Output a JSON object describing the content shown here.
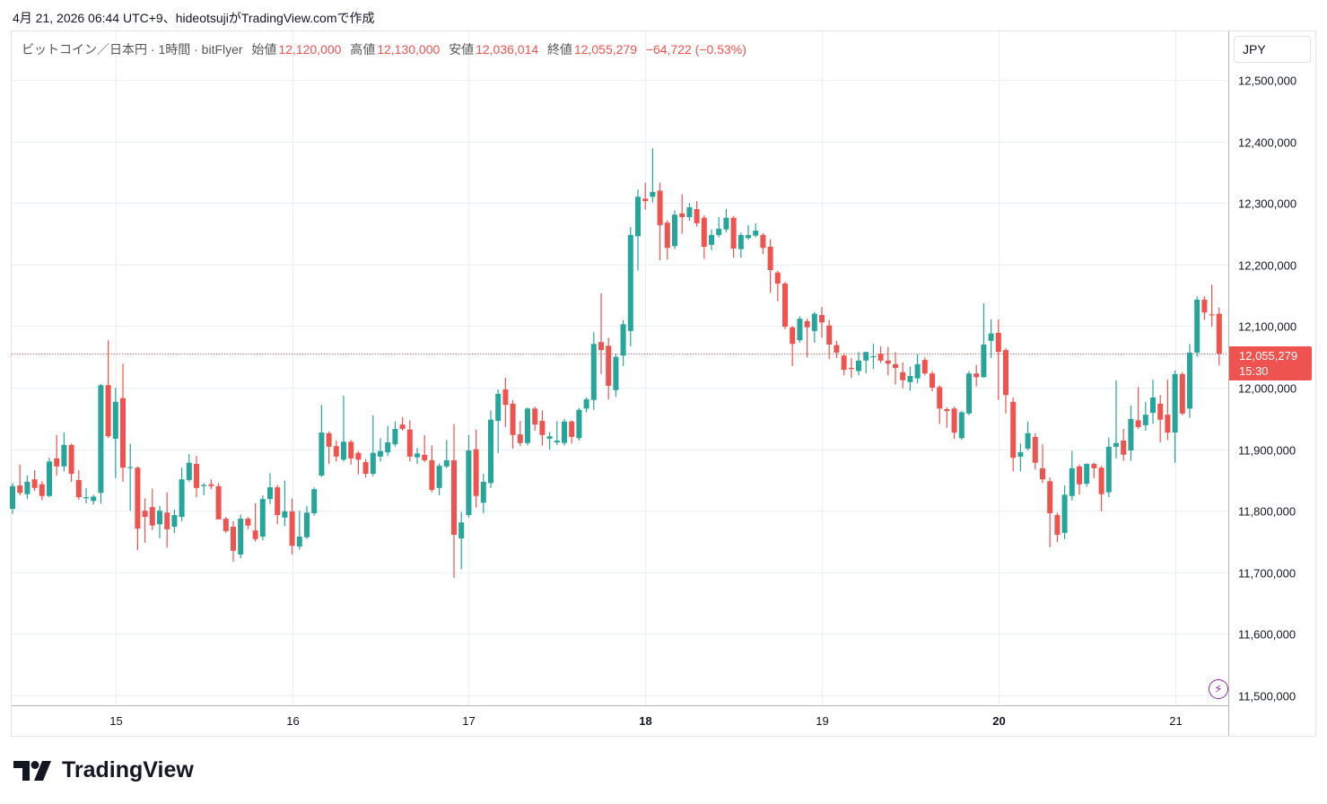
{
  "caption": "4月 21, 2026 06:44 UTC+9、hideotsujiがTradingView.comで作成",
  "legend": {
    "symbol": "ビットコイン／日本円 · 1時間 · bitFlyer",
    "open_label": "始値",
    "open": "12,120,000",
    "high_label": "高値",
    "high": "12,130,000",
    "low_label": "安値",
    "low": "12,036,014",
    "close_label": "終値",
    "close": "12,055,279",
    "change": "−64,722 (−0.53%)"
  },
  "currency_button": "JPY",
  "price_tag": {
    "price": "12,055,279",
    "countdown": "15:30"
  },
  "logo_text": "TradingView",
  "colors": {
    "up": "#26a69a",
    "down": "#ef5350",
    "grid": "#eaeff4",
    "last_price": "#ef5350"
  },
  "chart_data": {
    "type": "candlestick",
    "title": "ビットコイン／日本円 · 1時間 · bitFlyer",
    "ylim": [
      11483000,
      12579000
    ],
    "last_price": 12055279,
    "y_ticks": [
      {
        "value": 12500000,
        "label": "12,500,000"
      },
      {
        "value": 12400000,
        "label": "12,400,000"
      },
      {
        "value": 12300000,
        "label": "12,300,000"
      },
      {
        "value": 12200000,
        "label": "12,200,000"
      },
      {
        "value": 12100000,
        "label": "12,100,000"
      },
      {
        "value": 12000000,
        "label": "12,000,000"
      },
      {
        "value": 11900000,
        "label": "11,900,000"
      },
      {
        "value": 11800000,
        "label": "11,800,000"
      },
      {
        "value": 11700000,
        "label": "11,700,000"
      },
      {
        "value": 11600000,
        "label": "11,600,000"
      },
      {
        "value": 11500000,
        "label": "11,500,000"
      }
    ],
    "x_ticks": [
      {
        "label": "15",
        "candle_index": 14,
        "bold": false
      },
      {
        "label": "16",
        "candle_index": 38,
        "bold": false
      },
      {
        "label": "17",
        "candle_index": 62,
        "bold": false
      },
      {
        "label": "18",
        "candle_index": 86,
        "bold": true
      },
      {
        "label": "19",
        "candle_index": 110,
        "bold": false
      },
      {
        "label": "20",
        "candle_index": 134,
        "bold": true
      },
      {
        "label": "21",
        "candle_index": 158,
        "bold": false
      }
    ],
    "ohlc_thousands_jpy": [
      [
        11803,
        11845,
        11795,
        11840
      ],
      [
        11841,
        11875,
        11825,
        11829
      ],
      [
        11827,
        11857,
        11819,
        11847
      ],
      [
        11851,
        11866,
        11832,
        11837
      ],
      [
        11843,
        11848,
        11817,
        11824
      ],
      [
        11824,
        11886,
        11822,
        11880
      ],
      [
        11885,
        11923,
        11857,
        11872
      ],
      [
        11872,
        11927,
        11864,
        11907
      ],
      [
        11907,
        11909,
        11847,
        11860
      ],
      [
        11850,
        11866,
        11818,
        11822
      ],
      [
        11821,
        11837,
        11812,
        11822
      ],
      [
        11816,
        11826,
        11810,
        11823
      ],
      [
        11829,
        12006,
        11812,
        12004
      ],
      [
        12004,
        12077,
        11918,
        11921
      ],
      [
        11917,
        12000,
        11853,
        11977
      ],
      [
        11983,
        12039,
        11847,
        11870
      ],
      [
        11870,
        11909,
        11800,
        11871
      ],
      [
        11870,
        11872,
        11736,
        11771
      ],
      [
        11800,
        11820,
        11748,
        11790
      ],
      [
        11806,
        11836,
        11769,
        11776
      ],
      [
        11778,
        11808,
        11755,
        11800
      ],
      [
        11797,
        11830,
        11740,
        11770
      ],
      [
        11774,
        11802,
        11764,
        11793
      ],
      [
        11790,
        11870,
        11783,
        11851
      ],
      [
        11850,
        11892,
        11847,
        11878
      ],
      [
        11876,
        11889,
        11822,
        11837
      ],
      [
        11840,
        11845,
        11825,
        11842
      ],
      [
        11843,
        11851,
        11835,
        11840
      ],
      [
        11840,
        11845,
        11814,
        11786
      ],
      [
        11787,
        11790,
        11764,
        11767
      ],
      [
        11774,
        11783,
        11717,
        11735
      ],
      [
        11729,
        11794,
        11723,
        11787
      ],
      [
        11787,
        11790,
        11770,
        11776
      ],
      [
        11768,
        11812,
        11750,
        11754
      ],
      [
        11758,
        11825,
        11752,
        11819
      ],
      [
        11819,
        11861,
        11811,
        11838
      ],
      [
        11838,
        11842,
        11778,
        11793
      ],
      [
        11789,
        11849,
        11775,
        11799
      ],
      [
        11799,
        11820,
        11729,
        11743
      ],
      [
        11742,
        11800,
        11737,
        11758
      ],
      [
        11757,
        11808,
        11754,
        11797
      ],
      [
        11796,
        11838,
        11792,
        11835
      ],
      [
        11857,
        11972,
        11855,
        11927
      ],
      [
        11926,
        11929,
        11876,
        11904
      ],
      [
        11905,
        11914,
        11880,
        11888
      ],
      [
        11883,
        11987,
        11880,
        11912
      ],
      [
        11912,
        11915,
        11875,
        11885
      ],
      [
        11894,
        11897,
        11859,
        11883
      ],
      [
        11879,
        11884,
        11854,
        11860
      ],
      [
        11860,
        11955,
        11856,
        11894
      ],
      [
        11888,
        11918,
        11880,
        11897
      ],
      [
        11895,
        11938,
        11889,
        11911
      ],
      [
        11908,
        11945,
        11904,
        11933
      ],
      [
        11940,
        11952,
        11930,
        11933
      ],
      [
        11932,
        11947,
        11880,
        11888
      ],
      [
        11887,
        11902,
        11876,
        11893
      ],
      [
        11891,
        11923,
        11879,
        11882
      ],
      [
        11882,
        11906,
        11830,
        11834
      ],
      [
        11837,
        11877,
        11825,
        11873
      ],
      [
        11872,
        11915,
        11869,
        11882
      ],
      [
        11882,
        11941,
        11691,
        11761
      ],
      [
        11755,
        11798,
        11705,
        11781
      ],
      [
        11793,
        11923,
        11789,
        11898
      ],
      [
        11900,
        11932,
        11805,
        11824
      ],
      [
        11813,
        11860,
        11796,
        11847
      ],
      [
        11845,
        11963,
        11837,
        11948
      ],
      [
        11946,
        11997,
        11894,
        11990
      ],
      [
        11997,
        12016,
        11936,
        11972
      ],
      [
        11974,
        11980,
        11901,
        11923
      ],
      [
        11924,
        11946,
        11905,
        11910
      ],
      [
        11910,
        11968,
        11906,
        11966
      ],
      [
        11966,
        11969,
        11930,
        11940
      ],
      [
        11946,
        11963,
        11906,
        11923
      ],
      [
        11917,
        11928,
        11899,
        11921
      ],
      [
        11911,
        11946,
        11907,
        11914
      ],
      [
        11910,
        11949,
        11906,
        11945
      ],
      [
        11945,
        11947,
        11909,
        11920
      ],
      [
        11918,
        11967,
        11914,
        11964
      ],
      [
        11966,
        11984,
        11960,
        11981
      ],
      [
        11980,
        12090,
        11964,
        12071
      ],
      [
        12074,
        12153,
        12022,
        12061
      ],
      [
        12068,
        12081,
        11981,
        12003
      ],
      [
        11996,
        12055,
        11985,
        12050
      ],
      [
        12052,
        12110,
        12035,
        12103
      ],
      [
        12092,
        12261,
        12067,
        12248
      ],
      [
        12246,
        12322,
        12190,
        12310
      ],
      [
        12307,
        12333,
        12289,
        12303
      ],
      [
        12310,
        12389,
        12301,
        12318
      ],
      [
        12320,
        12333,
        12207,
        12264
      ],
      [
        12268,
        12272,
        12208,
        12227
      ],
      [
        12230,
        12288,
        12225,
        12281
      ],
      [
        12283,
        12314,
        12250,
        12277
      ],
      [
        12277,
        12300,
        12271,
        12293
      ],
      [
        12290,
        12303,
        12262,
        12267
      ],
      [
        12276,
        12280,
        12209,
        12229
      ],
      [
        12232,
        12257,
        12223,
        12248
      ],
      [
        12248,
        12277,
        12244,
        12258
      ],
      [
        12257,
        12290,
        12252,
        12276
      ],
      [
        12276,
        12279,
        12211,
        12226
      ],
      [
        12225,
        12252,
        12211,
        12248
      ],
      [
        12243,
        12264,
        12240,
        12248
      ],
      [
        12247,
        12267,
        12244,
        12255
      ],
      [
        12248,
        12251,
        12217,
        12227
      ],
      [
        12229,
        12241,
        12154,
        12191
      ],
      [
        12187,
        12190,
        12140,
        12169
      ],
      [
        12169,
        12172,
        12095,
        12099
      ],
      [
        12098,
        12100,
        12035,
        12071
      ],
      [
        12077,
        12116,
        12073,
        12112
      ],
      [
        12108,
        12112,
        12049,
        12098
      ],
      [
        12092,
        12123,
        12073,
        12120
      ],
      [
        12118,
        12131,
        12081,
        12106
      ],
      [
        12101,
        12110,
        12046,
        12070
      ],
      [
        12069,
        12076,
        12048,
        12057
      ],
      [
        12052,
        12056,
        12020,
        12029
      ],
      [
        12032,
        12048,
        12016,
        12031
      ],
      [
        12027,
        12058,
        12020,
        12044
      ],
      [
        12044,
        12058,
        12023,
        12058
      ],
      [
        12050,
        12071,
        12030,
        12051
      ],
      [
        12055,
        12067,
        12040,
        12044
      ],
      [
        12044,
        12066,
        12020,
        12039
      ],
      [
        12038,
        12058,
        12005,
        12032
      ],
      [
        12025,
        12041,
        11999,
        12012
      ],
      [
        12009,
        12034,
        11995,
        12019
      ],
      [
        12015,
        12054,
        12007,
        12038
      ],
      [
        12045,
        12049,
        12020,
        12023
      ],
      [
        12023,
        12027,
        11994,
        12000
      ],
      [
        12001,
        12004,
        11941,
        11966
      ],
      [
        11965,
        11968,
        11935,
        11962
      ],
      [
        11966,
        11969,
        11917,
        11927
      ],
      [
        11918,
        11962,
        11915,
        11960
      ],
      [
        11958,
        12027,
        11955,
        12023
      ],
      [
        12023,
        12037,
        12002,
        12017
      ],
      [
        12017,
        12137,
        12016,
        12070
      ],
      [
        12076,
        12111,
        12048,
        12088
      ],
      [
        12089,
        12111,
        11980,
        12058
      ],
      [
        12061,
        12064,
        11958,
        11988
      ],
      [
        11977,
        11984,
        11864,
        11886
      ],
      [
        11888,
        11909,
        11864,
        11895
      ],
      [
        11901,
        11945,
        11898,
        11926
      ],
      [
        11920,
        11926,
        11867,
        11878
      ],
      [
        11869,
        11908,
        11845,
        11851
      ],
      [
        11848,
        11854,
        11741,
        11796
      ],
      [
        11793,
        11797,
        11749,
        11761
      ],
      [
        11764,
        11841,
        11754,
        11826
      ],
      [
        11824,
        11897,
        11817,
        11869
      ],
      [
        11872,
        11875,
        11826,
        11843
      ],
      [
        11844,
        11877,
        11839,
        11876
      ],
      [
        11876,
        11878,
        11853,
        11869
      ],
      [
        11870,
        11873,
        11799,
        11827
      ],
      [
        11830,
        11919,
        11822,
        11904
      ],
      [
        11904,
        12012,
        11885,
        11910
      ],
      [
        11914,
        11933,
        11881,
        11891
      ],
      [
        11898,
        11971,
        11881,
        11949
      ],
      [
        11947,
        12001,
        11933,
        11936
      ],
      [
        11939,
        11977,
        11930,
        11956
      ],
      [
        11959,
        12013,
        11941,
        11984
      ],
      [
        11974,
        11988,
        11911,
        11948
      ],
      [
        11956,
        12013,
        11915,
        11927
      ],
      [
        11927,
        12028,
        11878,
        12022
      ],
      [
        12022,
        12025,
        11955,
        11958
      ],
      [
        11966,
        12071,
        11951,
        12057
      ],
      [
        12057,
        12148,
        12050,
        12143
      ],
      [
        12143,
        12148,
        12110,
        12122
      ],
      [
        12119,
        12167,
        12099,
        12118
      ],
      [
        12120,
        12130,
        12036.014,
        12055.279
      ]
    ]
  }
}
